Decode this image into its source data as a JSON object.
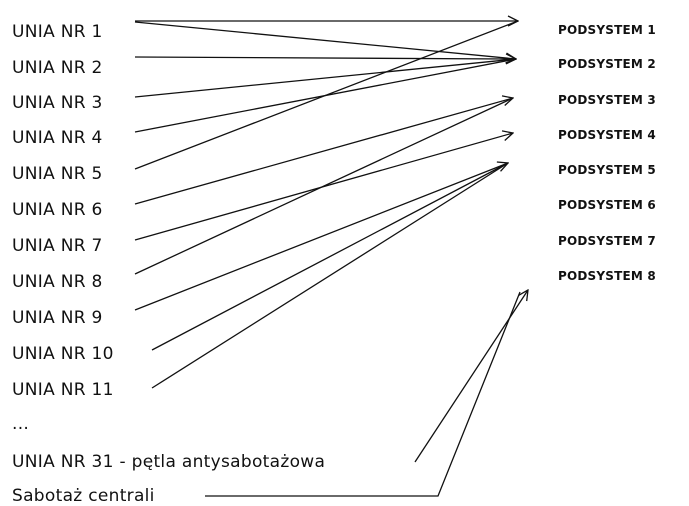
{
  "lines": [
    "UNIA NR 1",
    "UNIA NR 2",
    "UNIA NR 3",
    "UNIA NR 4",
    "UNIA NR 5",
    "UNIA NR 6",
    "UNIA NR 7",
    "UNIA NR 8",
    "UNIA NR 9",
    "UNIA NR 10",
    "UNIA NR 11",
    "...",
    "UNIA NR 31 - pętla antysabotażowa",
    "Sabotaż centrali"
  ],
  "subsystems": [
    "PODSYSTEM 1",
    "PODSYSTEM 2",
    "PODSYSTEM 3",
    "PODSYSTEM 4",
    "PODSYSTEM 5",
    "PODSYSTEM 6",
    "PODSYSTEM 7",
    "PODSYSTEM 8"
  ]
}
